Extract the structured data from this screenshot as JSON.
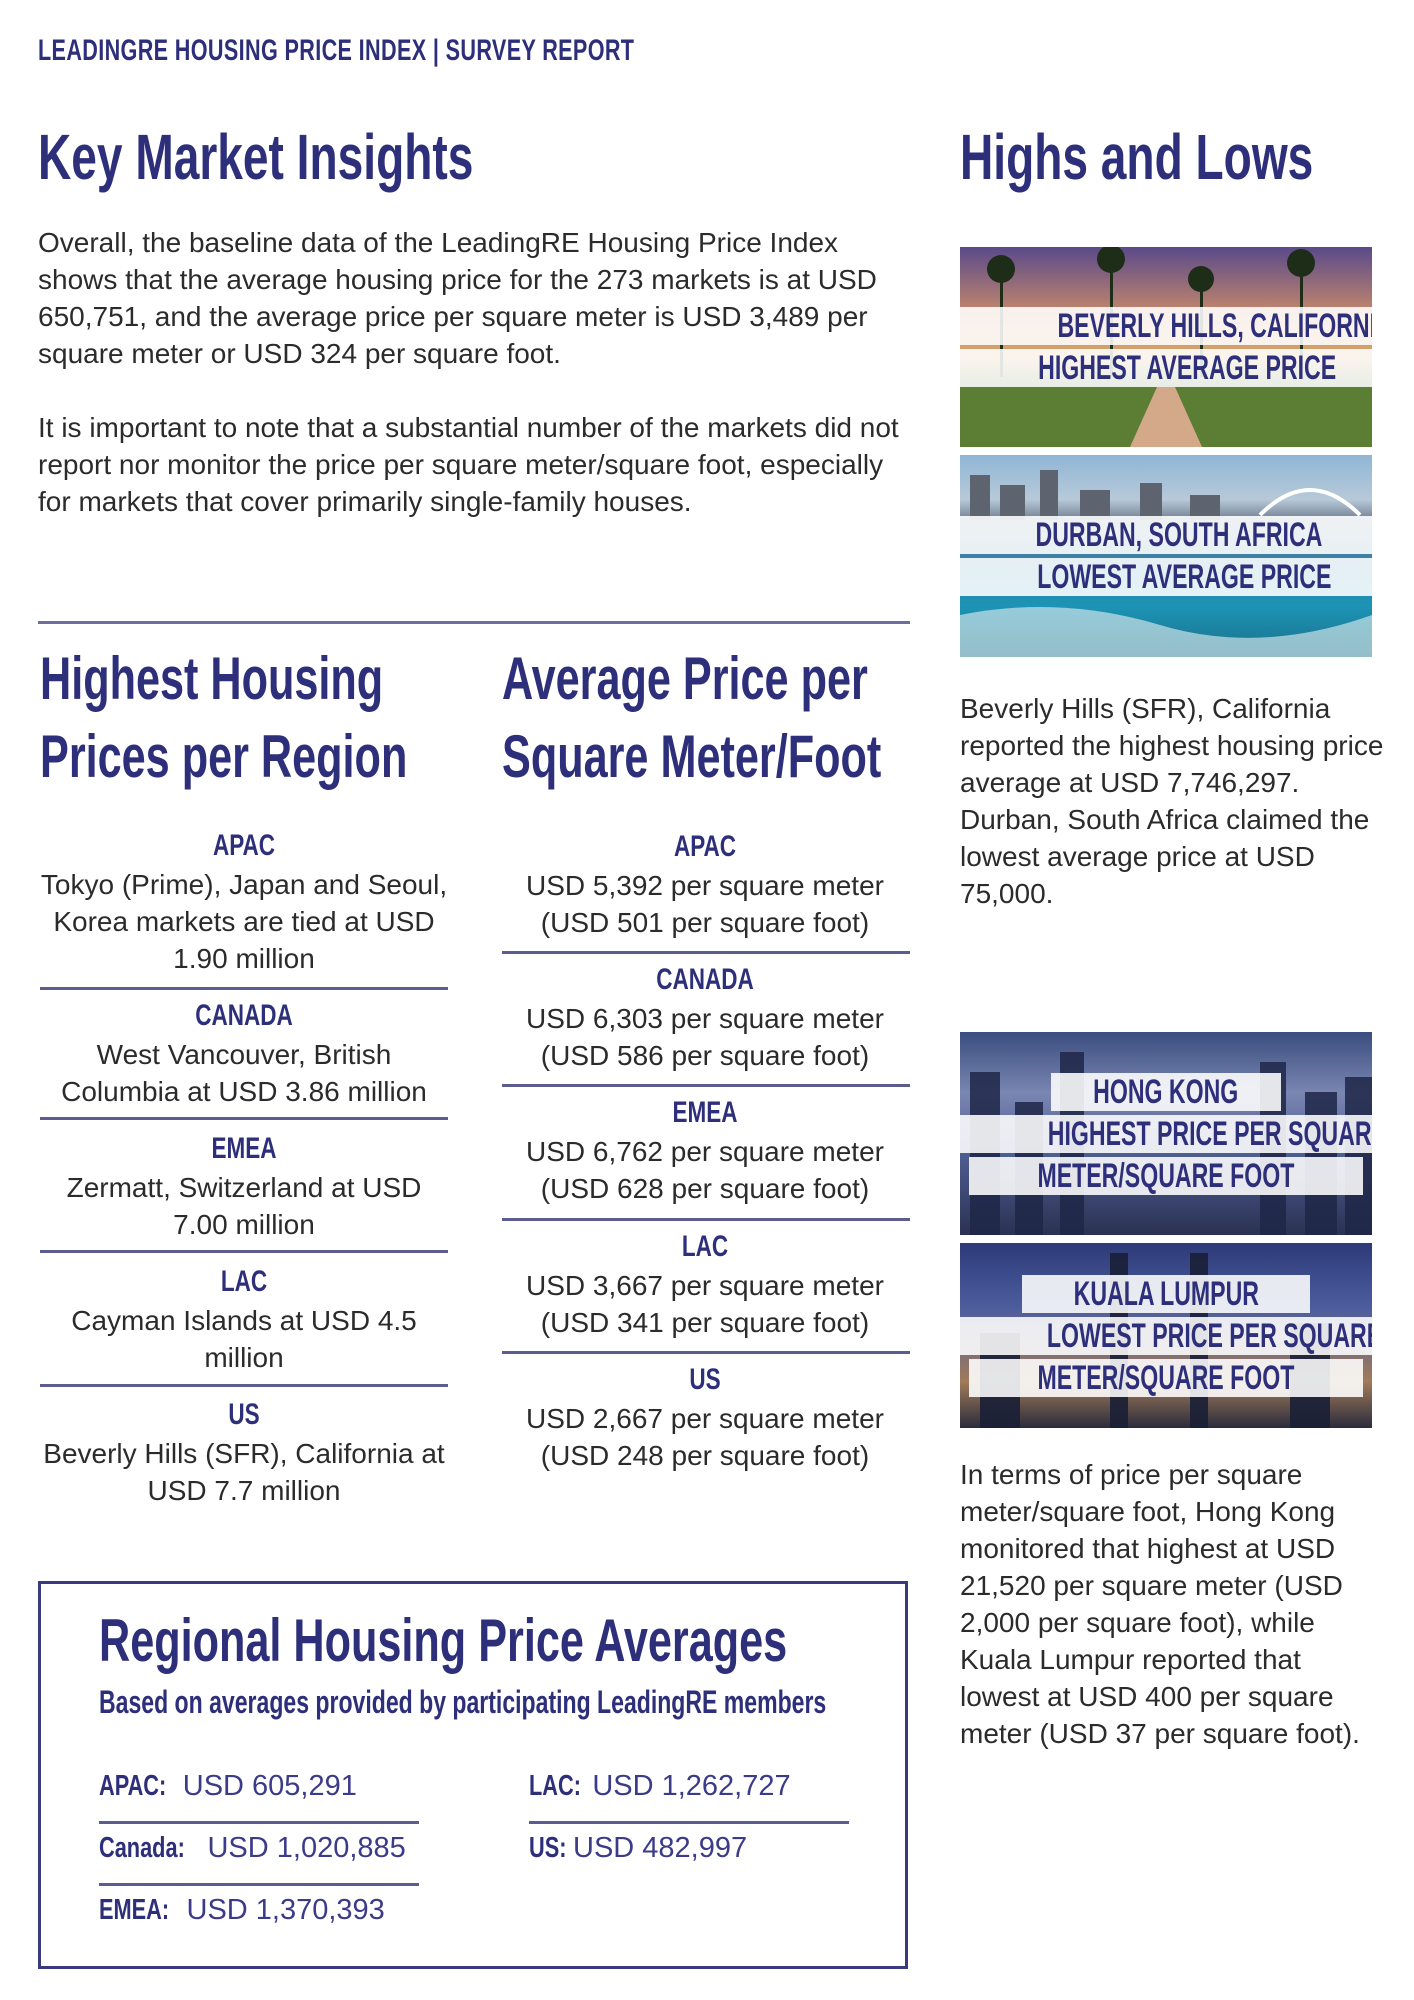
{
  "header": {
    "brand": "LEADINGRE HOUSING PRICE INDEX",
    "divider": "|",
    "section": "SURVEY REPORT"
  },
  "key_insights": {
    "title": "Key Market Insights",
    "paragraph1": "Overall, the baseline data of the LeadingRE Housing Price Index shows that the average housing price for the 273 markets is at USD 650,751, and the average price per square meter is USD 3,489 per square meter or USD 324 per square foot.",
    "paragraph2": "It is important to note that a substantial number of the markets did not report nor monitor the price per square meter/square foot, especially for markets that cover primarily single-family houses."
  },
  "highest_prices": {
    "title_line1": "Highest Housing",
    "title_line2": "Prices per Region",
    "regions": [
      {
        "label": "APAC",
        "text": "Tokyo (Prime), Japan and Seoul, Korea markets are tied at USD 1.90 million"
      },
      {
        "label": "CANADA",
        "text": "West Vancouver, British Columbia at USD 3.86 million"
      },
      {
        "label": "EMEA",
        "text": "Zermatt, Switzerland at USD 7.00 million"
      },
      {
        "label": "LAC",
        "text": "Cayman Islands at USD 4.5 million"
      },
      {
        "label": "US",
        "text": "Beverly Hills (SFR), California at USD 7.7 million"
      }
    ]
  },
  "avg_sqm": {
    "title_line1": "Average Price per",
    "title_line2": "Square Meter/Foot",
    "regions": [
      {
        "label": "APAC",
        "line1": "USD 5,392 per square meter",
        "line2": "(USD 501 per square foot)"
      },
      {
        "label": "CANADA",
        "line1": "USD 6,303 per square meter",
        "line2": "(USD 586 per square foot)"
      },
      {
        "label": "EMEA",
        "line1": "USD 6,762 per square meter",
        "line2": "(USD 628 per square foot)"
      },
      {
        "label": "LAC",
        "line1": "USD 3,667 per square meter",
        "line2": "(USD 341 per square foot)"
      },
      {
        "label": "US",
        "line1": "USD 2,667 per square meter",
        "line2": "(USD 248 per square foot)"
      }
    ]
  },
  "highs_lows": {
    "title": "Highs and Lows",
    "photo1": {
      "line1": "BEVERLY HILLS, CALIFORNIA, US",
      "line2": "HIGHEST AVERAGE PRICE"
    },
    "photo2": {
      "line1": "DURBAN, SOUTH AFRICA",
      "line2": "LOWEST AVERAGE PRICE"
    },
    "text1": "Beverly Hills (SFR), California reported the highest housing price average at USD 7,746,297. Durban, South Africa claimed the lowest average price at USD 75,000.",
    "photo3": {
      "line1": "HONG KONG",
      "line2": "HIGHEST PRICE PER SQUARE",
      "line3": "METER/SQUARE FOOT"
    },
    "photo4": {
      "line1": "KUALA LUMPUR",
      "line2": "LOWEST PRICE PER SQUARE",
      "line3": "METER/SQUARE FOOT"
    },
    "text2": "In terms of price per square meter/square foot, Hong Kong monitored that highest at USD 21,520 per square meter (USD 2,000 per square foot), while Kuala Lumpur reported that lowest at USD 400 per square meter (USD 37 per square foot)."
  },
  "regional_averages": {
    "title": "Regional Housing Price Averages",
    "subtitle": "Based on averages provided by participating LeadingRE members",
    "items": [
      {
        "label": "APAC:",
        "value": "USD 605,291"
      },
      {
        "label": "Canada:",
        "value": "USD 1,020,885"
      },
      {
        "label": "EMEA:",
        "value": "USD 1,370,393"
      },
      {
        "label": "LAC:",
        "value": "USD 1,262,727"
      },
      {
        "label": "US:",
        "value": "USD 482,997"
      }
    ]
  },
  "colors": {
    "navy": "#2e2f7a",
    "text": "#2b2b2b",
    "rule": "#6e6e9e"
  }
}
